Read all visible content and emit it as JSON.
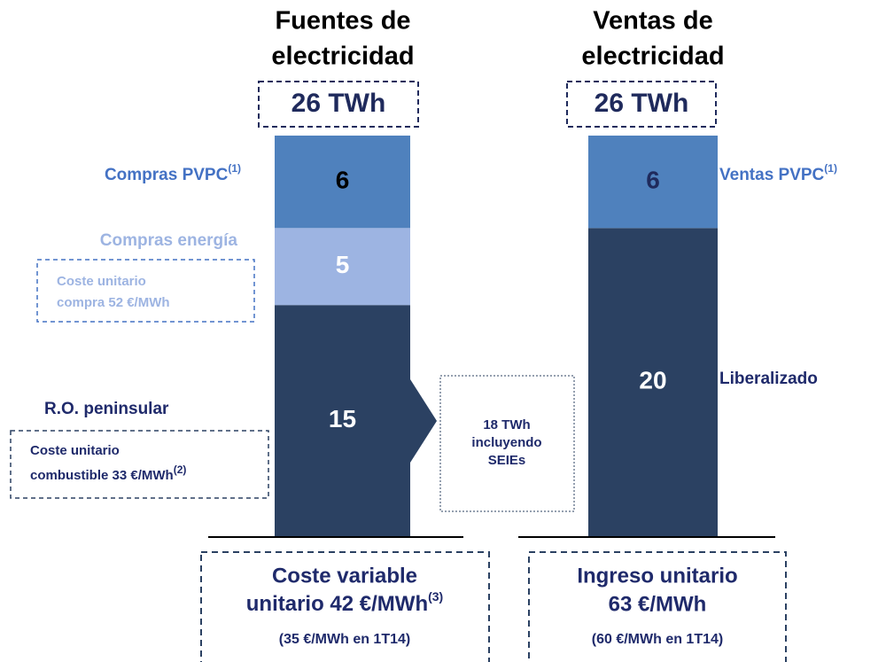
{
  "chart_data": {
    "type": "stacked_bar",
    "bars": [
      {
        "title": [
          "Fuentes de",
          "electricidad"
        ],
        "total": 26,
        "total_label": "26 TWh",
        "segments": [
          {
            "name": "R.O. peninsular",
            "value": 15,
            "color": "#2b4162",
            "text_color": "#ffffff"
          },
          {
            "name": "Compras energía",
            "value": 5,
            "color": "#9db4e2",
            "text_color": "#ffffff"
          },
          {
            "name": "Compras PVPC",
            "note": "(1)",
            "value": 6,
            "color": "#4f81bd",
            "text_color": "#000000"
          }
        ]
      },
      {
        "title": [
          "Ventas de",
          "electricidad"
        ],
        "total": 26,
        "total_label": "26 TWh",
        "segments": [
          {
            "name": "Liberalizado",
            "value": 20,
            "color": "#2b4162",
            "text_color": "#ffffff"
          },
          {
            "name": "Ventas PVPC",
            "note": "(1)",
            "value": 6,
            "color": "#4f81bd",
            "text_color": "#1f2a5c"
          }
        ]
      }
    ],
    "annotations": {
      "purchase_cost": [
        "Coste unitario",
        "compra 52 €/MWh"
      ],
      "fuel_cost": {
        "lines": [
          "Coste unitario",
          "combustible 33 €/MWh"
        ],
        "note": "(2)"
      },
      "seies": [
        "18 TWh",
        "incluyendo",
        "SEIEs"
      ],
      "variable_cost": {
        "lines": [
          "Coste variable",
          "unitario 42 €/MWh"
        ],
        "note": "(3)",
        "sub": "(35 €/MWh en 1T14)"
      },
      "unit_revenue": {
        "lines": [
          "Ingreso unitario",
          "63 €/MWh"
        ],
        "sub": "(60 €/MWh en 1T14)"
      }
    }
  }
}
